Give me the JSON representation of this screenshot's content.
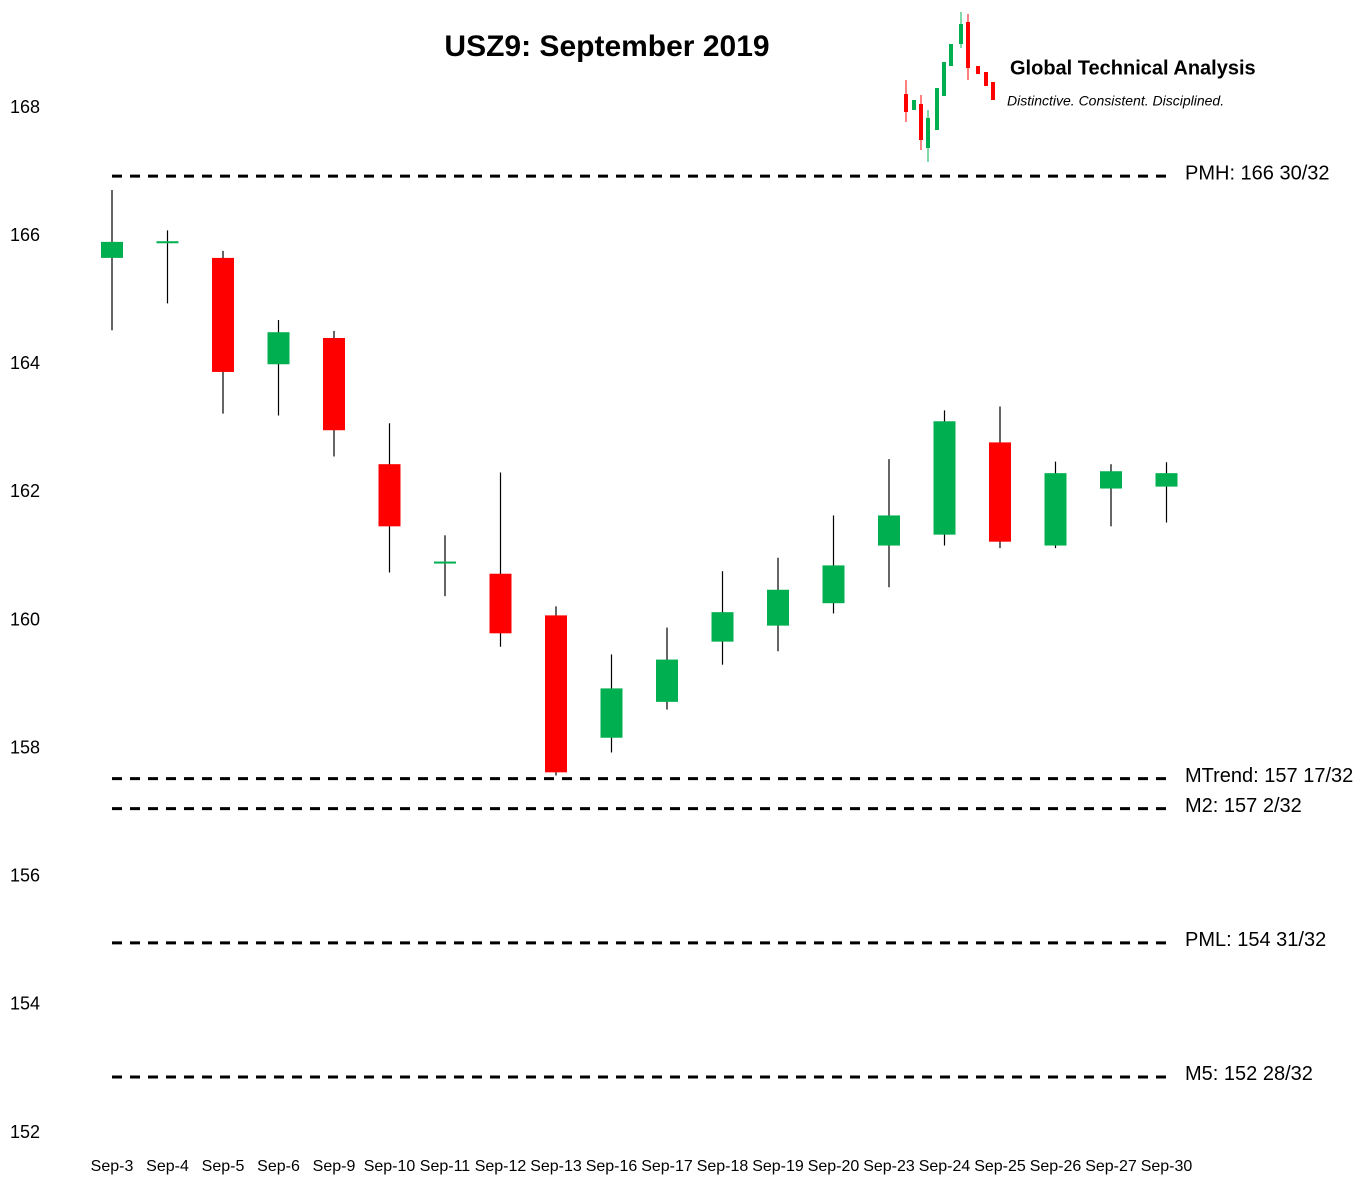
{
  "chart_data": {
    "type": "candlestick",
    "title": "USZ9: September 2019",
    "brand": {
      "name": "Global Technical Analysis",
      "tagline": "Distinctive. Consistent. Disciplined."
    },
    "categories": [
      "Sep-3",
      "Sep-4",
      "Sep-5",
      "Sep-6",
      "Sep-9",
      "Sep-10",
      "Sep-11",
      "Sep-12",
      "Sep-13",
      "Sep-16",
      "Sep-17",
      "Sep-18",
      "Sep-19",
      "Sep-20",
      "Sep-23",
      "Sep-24",
      "Sep-25",
      "Sep-26",
      "Sep-27",
      "Sep-30"
    ],
    "open": [
      165.66,
      165.89,
      165.66,
      164.0,
      164.41,
      162.44,
      160.91,
      160.73,
      160.08,
      158.17,
      158.73,
      159.67,
      159.92,
      160.27,
      161.17,
      161.34,
      162.78,
      161.17,
      162.06,
      162.09
    ],
    "high": [
      166.72,
      166.09,
      165.77,
      164.69,
      164.52,
      163.08,
      161.33,
      162.31,
      160.22,
      159.47,
      159.89,
      160.77,
      160.98,
      161.64,
      162.52,
      163.28,
      163.34,
      162.48,
      162.44,
      162.47
    ],
    "low": [
      164.53,
      164.95,
      163.23,
      163.2,
      162.56,
      160.75,
      160.38,
      159.59,
      157.58,
      157.94,
      158.61,
      159.31,
      159.52,
      160.11,
      160.52,
      161.17,
      161.13,
      161.13,
      161.47,
      161.53
    ],
    "close": [
      165.91,
      165.92,
      163.88,
      164.5,
      162.97,
      161.47,
      160.92,
      159.8,
      157.63,
      158.94,
      159.39,
      160.13,
      160.48,
      160.86,
      161.64,
      163.11,
      161.23,
      162.3,
      162.33,
      162.3
    ],
    "up_color": "#00b050",
    "down_color": "#ff0000",
    "levels": [
      {
        "label": "PMH: 166 30/32",
        "value": 166.9375
      },
      {
        "label": "MTrend: 157 17/32",
        "value": 157.53125
      },
      {
        "label": "M2: 157 2/32",
        "value": 157.0625
      },
      {
        "label": "PML: 154 31/32",
        "value": 154.96875
      },
      {
        "label": "M5: 152 28/32",
        "value": 152.875
      }
    ],
    "ylim": [
      152,
      168
    ],
    "yticks": [
      152,
      154,
      156,
      158,
      160,
      162,
      164,
      166,
      168
    ],
    "grid": false
  }
}
